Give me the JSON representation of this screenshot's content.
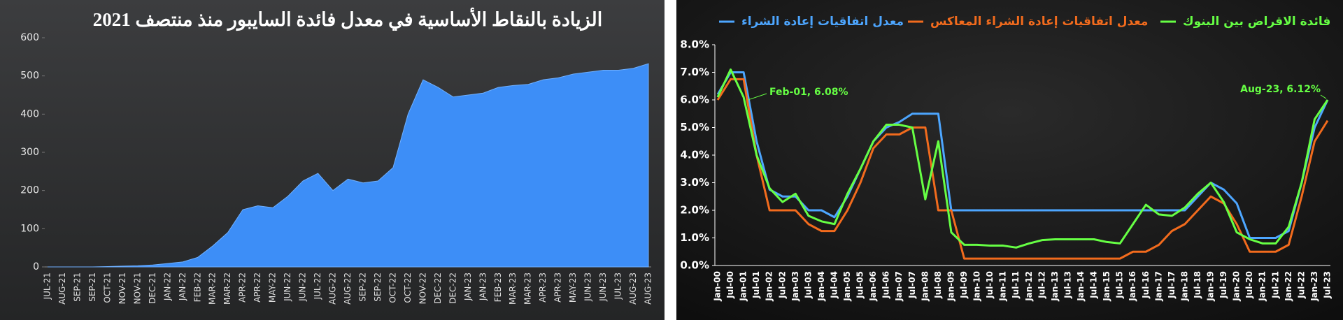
{
  "chart_data": [
    {
      "type": "area",
      "title": "الزيادة بالنقاط الأساسية في معدل فائدة السايبور منذ منتصف 2021",
      "categories": [
        "JUL-21",
        "AUG-21",
        "SEP-21",
        "SEP-21",
        "OCT-21",
        "NOV-21",
        "NOV-21",
        "DEC-21",
        "JAN-22",
        "JAN-22",
        "FEB-22",
        "MAR-22",
        "MAR-22",
        "APR-22",
        "APR-22",
        "MAY-22",
        "JUN-22",
        "JUN-22",
        "JUL-22",
        "AUG-22",
        "AUG-22",
        "SEP-22",
        "SEP-22",
        "OCT-22",
        "OCT-22",
        "NOV-22",
        "DEC-22",
        "DEC-22",
        "JAN-23",
        "JAN-23",
        "FEB-23",
        "MAR-23",
        "MAR-23",
        "APR-23",
        "APR-23",
        "MAY-23",
        "JUN-23",
        "JUN-23",
        "JUL-23",
        "AUG-23",
        "AUG-23"
      ],
      "values": [
        0,
        0,
        0,
        0,
        1,
        2,
        3,
        5,
        9,
        13,
        25,
        55,
        90,
        150,
        160,
        155,
        185,
        225,
        245,
        200,
        230,
        220,
        225,
        260,
        400,
        490,
        470,
        445,
        450,
        455,
        470,
        475,
        478,
        490,
        495,
        505,
        510,
        515,
        515,
        520,
        532
      ],
      "color": "#3d8ef7",
      "ylim": [
        0,
        600
      ],
      "yticks": [
        0,
        100,
        200,
        300,
        400,
        500,
        600
      ]
    },
    {
      "type": "line",
      "categories": [
        "Jan-00",
        "Jul-00",
        "Jan-01",
        "Jul-01",
        "Jan-02",
        "Jul-02",
        "Jan-03",
        "Jul-03",
        "Jan-04",
        "Jul-04",
        "Jan-05",
        "Jul-05",
        "Jan-06",
        "Jul-06",
        "Jan-07",
        "Jul-07",
        "Jan-08",
        "Jul-08",
        "Jan-09",
        "Jul-09",
        "Jan-10",
        "Jul-10",
        "Jan-11",
        "Jul-11",
        "Jan-12",
        "Jul-12",
        "Jan-13",
        "Jul-13",
        "Jan-14",
        "Jul-14",
        "Jan-15",
        "Jul-15",
        "Jan-16",
        "Jul-16",
        "Jan-17",
        "Jul-17",
        "Jan-18",
        "Jul-18",
        "Jan-19",
        "Jul-19",
        "Jan-20",
        "Jul-20",
        "Jan-21",
        "Jul-21",
        "Jan-22",
        "Jul-22",
        "Jan-23",
        "Jul-23"
      ],
      "series": [
        {
          "name": "معدل اتفاقيات إعادة الشراء",
          "color": "#4da6ff",
          "values": [
            6.2,
            7.0,
            7.0,
            4.5,
            2.75,
            2.5,
            2.5,
            2.0,
            2.0,
            1.75,
            2.5,
            3.5,
            4.5,
            5.0,
            5.2,
            5.5,
            5.5,
            5.5,
            2.0,
            2.0,
            2.0,
            2.0,
            2.0,
            2.0,
            2.0,
            2.0,
            2.0,
            2.0,
            2.0,
            2.0,
            2.0,
            2.0,
            2.0,
            2.0,
            2.0,
            2.0,
            2.0,
            2.5,
            3.0,
            2.75,
            2.25,
            1.0,
            1.0,
            1.0,
            1.25,
            3.0,
            5.0,
            6.0
          ]
        },
        {
          "name": "معدل اتفاقيات إعادة الشراء المعاكس",
          "color": "#f26b1d",
          "values": [
            6.0,
            6.75,
            6.75,
            4.0,
            2.0,
            2.0,
            2.0,
            1.5,
            1.25,
            1.25,
            2.0,
            3.0,
            4.25,
            4.75,
            4.75,
            5.0,
            5.0,
            2.0,
            2.0,
            0.25,
            0.25,
            0.25,
            0.25,
            0.25,
            0.25,
            0.25,
            0.25,
            0.25,
            0.25,
            0.25,
            0.25,
            0.25,
            0.5,
            0.5,
            0.75,
            1.25,
            1.5,
            2.0,
            2.5,
            2.25,
            1.5,
            0.5,
            0.5,
            0.5,
            0.75,
            2.5,
            4.5,
            5.25
          ]
        },
        {
          "name": "فائدة الاقراض بين البنوك",
          "color": "#66ff44",
          "values": [
            6.1,
            7.1,
            6.1,
            4.0,
            2.8,
            2.3,
            2.6,
            1.8,
            1.6,
            1.5,
            2.6,
            3.5,
            4.5,
            5.1,
            5.1,
            5.0,
            2.4,
            4.5,
            1.2,
            0.75,
            0.75,
            0.72,
            0.72,
            0.65,
            0.8,
            0.92,
            0.95,
            0.95,
            0.95,
            0.95,
            0.85,
            0.8,
            1.5,
            2.2,
            1.85,
            1.8,
            2.1,
            2.6,
            3.0,
            2.3,
            1.2,
            0.95,
            0.8,
            0.8,
            1.4,
            3.0,
            5.3,
            6.0
          ]
        }
      ],
      "annotations": [
        "Feb-01, 6.08%",
        "Aug-23, 6.12%"
      ],
      "ylim": [
        0,
        8
      ],
      "yticks": [
        {
          "value": 0,
          "label": "0.0%"
        },
        {
          "value": 1,
          "label": "1.0%"
        },
        {
          "value": 2,
          "label": "2.0%"
        },
        {
          "value": 3,
          "label": "3.0%"
        },
        {
          "value": 4,
          "label": "4.0%"
        },
        {
          "value": 5,
          "label": "5.0%"
        },
        {
          "value": 6,
          "label": "6.0%"
        },
        {
          "value": 7,
          "label": "7.0%"
        },
        {
          "value": 8,
          "label": "8.0%"
        }
      ]
    }
  ]
}
